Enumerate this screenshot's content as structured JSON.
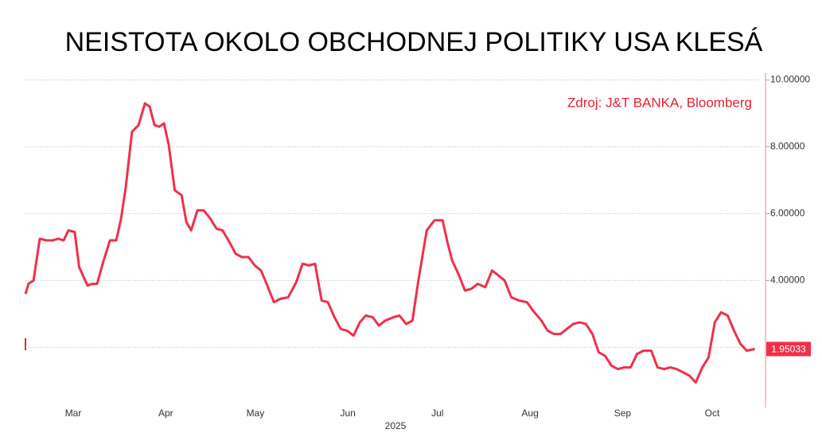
{
  "chart_data": {
    "type": "line",
    "title": "NEISTOTA OKOLO OBCHODNEJ POLITIKY USA KLESÁ",
    "annotation": "Zdroj: J&T BANKA, Bloomberg",
    "x_axis_label": "2025",
    "color": "#f0304a",
    "grid": true,
    "xlim": [
      44,
      290
    ],
    "ylim": [
      0.2,
      10.2
    ],
    "xticks": [
      {
        "value": 60,
        "label": "Mar"
      },
      {
        "value": 91,
        "label": "Apr"
      },
      {
        "value": 121,
        "label": "May"
      },
      {
        "value": 152,
        "label": "Jun"
      },
      {
        "value": 182,
        "label": "Jul"
      },
      {
        "value": 213,
        "label": "Aug"
      },
      {
        "value": 244,
        "label": "Sep"
      },
      {
        "value": 274,
        "label": "Oct"
      }
    ],
    "yticks": [
      {
        "value": 2,
        "label": null
      },
      {
        "value": 4,
        "label": "4.00000"
      },
      {
        "value": 6,
        "label": "6.00000"
      },
      {
        "value": 8,
        "label": "8.00000"
      },
      {
        "value": 10,
        "label": "10.00000"
      }
    ],
    "x": [
      44,
      45,
      46.7,
      48.8,
      51,
      53,
      55,
      56.8,
      58.4,
      60.5,
      62,
      64.8,
      66.4,
      68,
      70,
      72.3,
      74.4,
      76,
      77.6,
      79.7,
      81.9,
      84,
      85.6,
      87.2,
      88.8,
      90.4,
      92,
      94,
      96.3,
      97.9,
      99.5,
      101.6,
      103.7,
      105.9,
      108,
      110,
      112.3,
      114.4,
      116.5,
      118.7,
      120.8,
      122.9,
      125,
      127.2,
      129.3,
      132,
      134.7,
      136.8,
      139,
      141,
      143.2,
      145.3,
      147.5,
      149.6,
      151.7,
      153.9,
      156,
      158,
      160.3,
      162.4,
      164.5,
      167.2,
      169.3,
      171.5,
      173.6,
      175.7,
      178.4,
      181,
      183.7,
      185.3,
      186.9,
      189,
      191.2,
      193.3,
      195.5,
      198,
      200.3,
      202.4,
      204.5,
      206.7,
      209.3,
      212,
      214,
      216.8,
      218.9,
      221,
      223.2,
      225.3,
      227.5,
      229.6,
      231.7,
      233.9,
      236,
      238.1,
      240.3,
      242.4,
      244.5,
      246.7,
      248.8,
      251,
      253.6,
      255.7,
      257.9,
      260,
      262.1,
      264.3,
      266.4,
      268.5,
      270.7,
      272.8,
      274.9,
      277,
      279.2,
      281.3,
      283.5,
      285.6,
      288.3
    ],
    "values": [
      3.6,
      3.9,
      4.0,
      5.25,
      5.2,
      5.2,
      5.25,
      5.2,
      5.5,
      5.45,
      4.4,
      3.85,
      3.9,
      3.9,
      4.55,
      5.2,
      5.2,
      5.85,
      6.8,
      8.45,
      8.65,
      9.3,
      9.2,
      8.65,
      8.6,
      8.7,
      8.05,
      6.7,
      6.55,
      5.75,
      5.5,
      6.1,
      6.1,
      5.85,
      5.55,
      5.5,
      5.15,
      4.8,
      4.7,
      4.7,
      4.45,
      4.3,
      3.85,
      3.35,
      3.45,
      3.5,
      3.95,
      4.5,
      4.45,
      4.5,
      3.4,
      3.35,
      2.9,
      2.55,
      2.5,
      2.35,
      2.75,
      2.95,
      2.9,
      2.65,
      2.8,
      2.9,
      2.95,
      2.7,
      2.8,
      4.05,
      5.5,
      5.8,
      5.8,
      5.15,
      4.6,
      4.2,
      3.7,
      3.75,
      3.9,
      3.8,
      4.3,
      4.15,
      4.0,
      3.5,
      3.4,
      3.35,
      3.1,
      2.8,
      2.5,
      2.4,
      2.4,
      2.55,
      2.7,
      2.75,
      2.7,
      2.4,
      1.85,
      1.75,
      1.45,
      1.35,
      1.4,
      1.4,
      1.8,
      1.9,
      1.9,
      1.4,
      1.35,
      1.4,
      1.35,
      1.25,
      1.15,
      0.95,
      1.4,
      1.7,
      2.75,
      3.05,
      2.95,
      2.5,
      2.1,
      1.9,
      1.95033
    ]
  }
}
